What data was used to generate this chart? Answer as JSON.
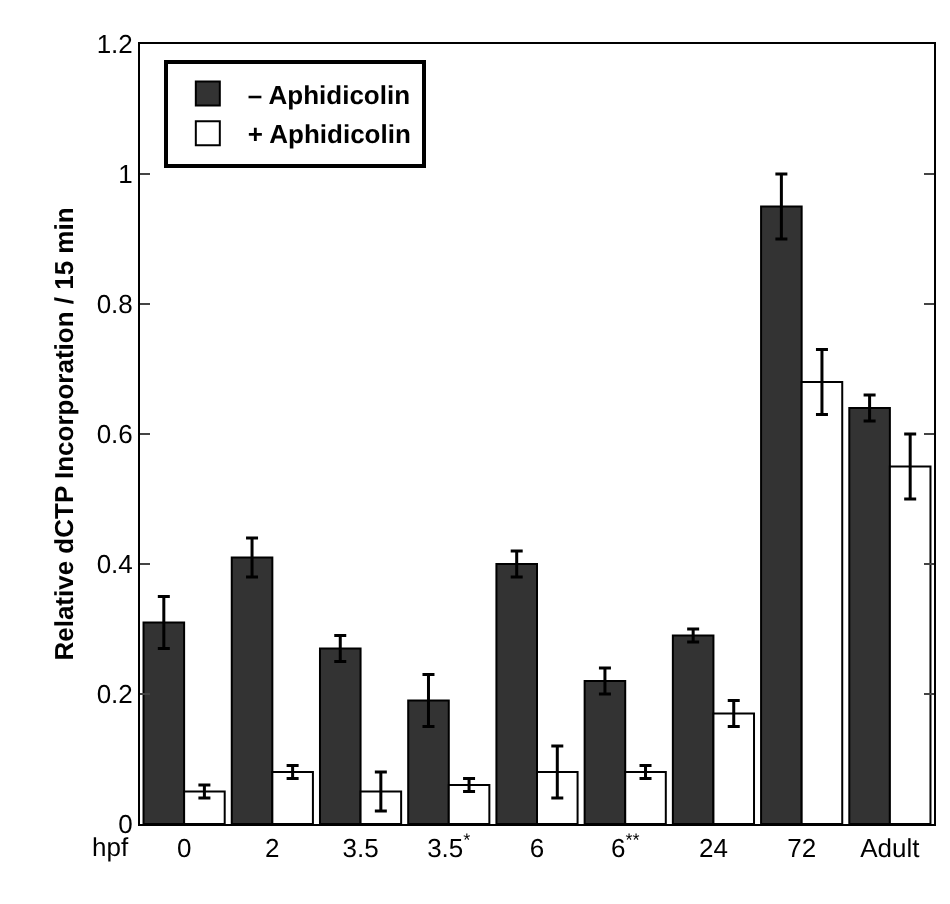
{
  "chart_data": {
    "type": "bar",
    "xlabel": "hpf",
    "ylabel": "Relative dCTP Incorporation / 15 min",
    "categories": [
      "0",
      "2",
      "3.5",
      "3.5$^{*}$",
      "6",
      "6$^{**}$",
      "24",
      "72",
      "Adult"
    ],
    "series": [
      {
        "name": "– Aphidicolin",
        "color": "#333333",
        "values": [
          0.31,
          0.41,
          0.27,
          0.19,
          0.4,
          0.22,
          0.29,
          0.95,
          0.64
        ],
        "errors": [
          0.04,
          0.03,
          0.02,
          0.04,
          0.02,
          0.02,
          0.01,
          0.05,
          0.02
        ]
      },
      {
        "name": "+ Aphidicolin",
        "color": "#ffffff",
        "values": [
          0.05,
          0.08,
          0.05,
          0.06,
          0.08,
          0.08,
          0.17,
          0.68,
          0.55
        ],
        "errors": [
          0.01,
          0.01,
          0.03,
          0.01,
          0.04,
          0.01,
          0.02,
          0.05,
          0.05
        ]
      }
    ],
    "ylim": [
      0,
      1.2
    ],
    "yticks": [
      0,
      0.2,
      0.4,
      0.6,
      0.8,
      1,
      1.2
    ],
    "grid": false,
    "legend": "top left"
  }
}
